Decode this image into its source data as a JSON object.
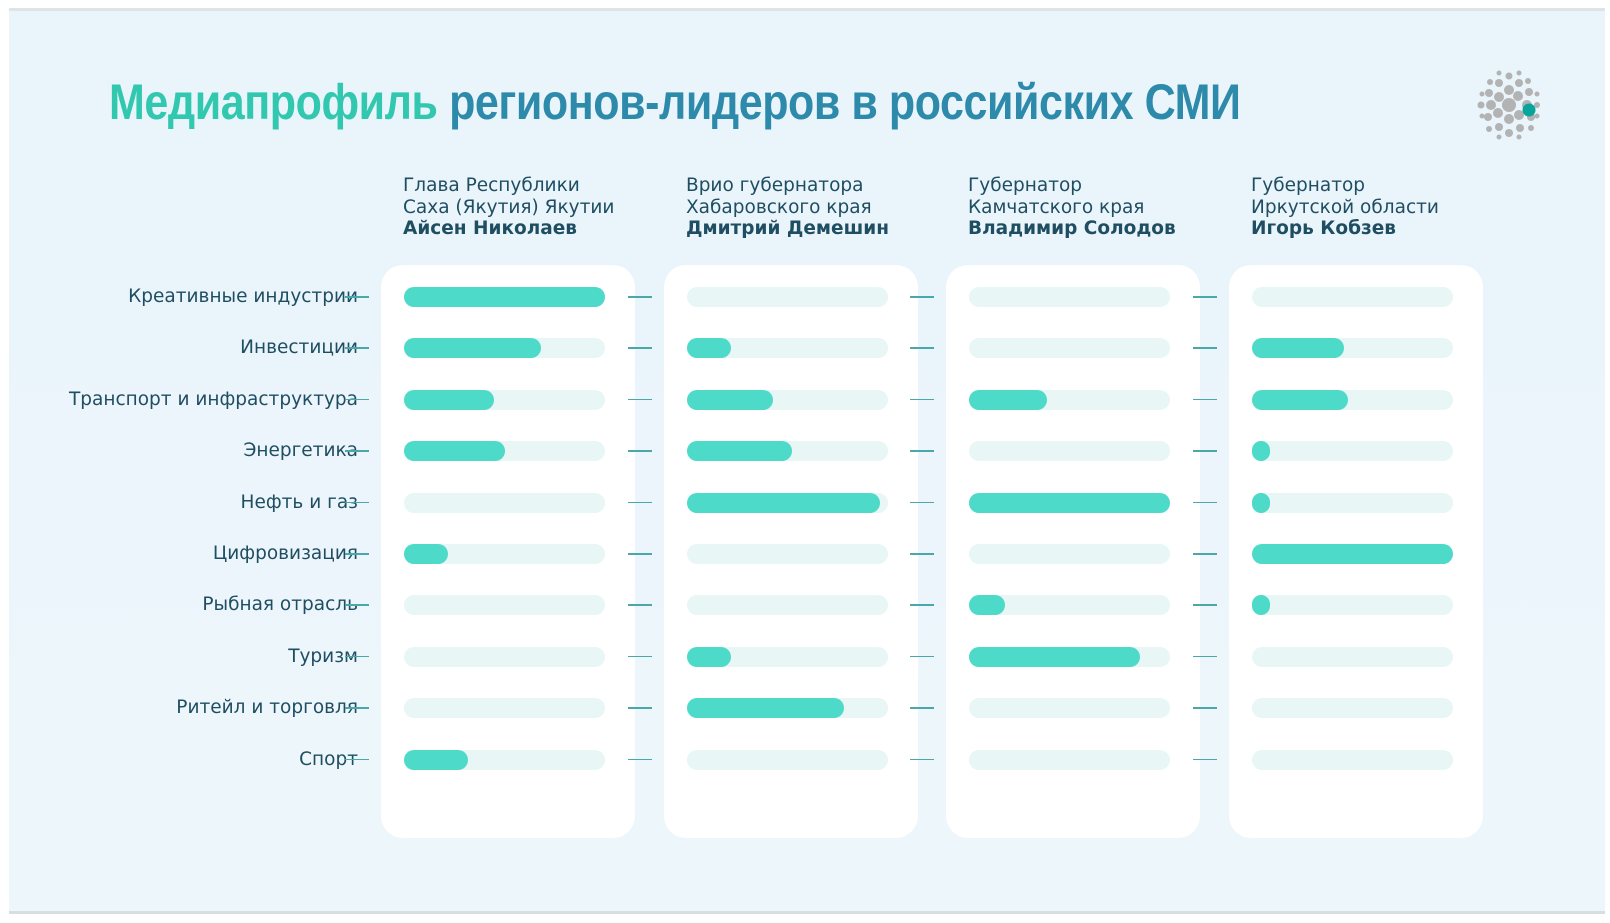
{
  "title": {
    "part1": "Медиапрофиль",
    "part2": "регионов-лидеров в российских СМИ"
  },
  "colors": {
    "accent": "#32c8b0",
    "title_secondary": "#2d8aaa",
    "bar_fill": "#4ddac8",
    "bar_track": "#e8f6f6",
    "text": "#1f4e62",
    "logo_dot": "#0aa59a",
    "logo_circles": "#b3b3b3"
  },
  "logo": {
    "icon": "grey-circle-cluster-logo"
  },
  "chart_data": {
    "type": "bar",
    "orientation": "horizontal",
    "title": "Медиапрофиль регионов-лидеров в российских СМИ",
    "categories": [
      "Креативные индустрии",
      "Инвестиции",
      "Транспорт и инфраструктура",
      "Энергетика",
      "Нефть и газ",
      "Цифровизация",
      "Рыбная отрасль",
      "Туризм",
      "Ритейл и торговля",
      "Спорт"
    ],
    "xlim": [
      0,
      1
    ],
    "series": [
      {
        "role": "Глава Республики",
        "region": "Саха (Якутия) Якутии",
        "name": "Айсен Николаев",
        "values": [
          1.0,
          0.68,
          0.45,
          0.5,
          0,
          0.22,
          0,
          0,
          0,
          0.32
        ]
      },
      {
        "role": "Врио губернатора",
        "region": "Хабаровского края",
        "name": "Дмитрий Демешин",
        "values": [
          0,
          0.22,
          0.43,
          0.52,
          0.96,
          0,
          0,
          0.22,
          0.78,
          0
        ]
      },
      {
        "role": "Губернатор",
        "region": "Камчатского края",
        "name": "Владимир Солодов",
        "values": [
          0,
          0,
          0.39,
          0,
          1.0,
          0,
          0.18,
          0.85,
          0,
          0
        ]
      },
      {
        "role": "Губернатор",
        "region": "Иркутской области",
        "name": "Игорь Кобзев",
        "values": [
          0,
          0.46,
          0.48,
          0.09,
          0.09,
          1.0,
          0.06,
          0,
          0,
          0
        ]
      }
    ]
  }
}
